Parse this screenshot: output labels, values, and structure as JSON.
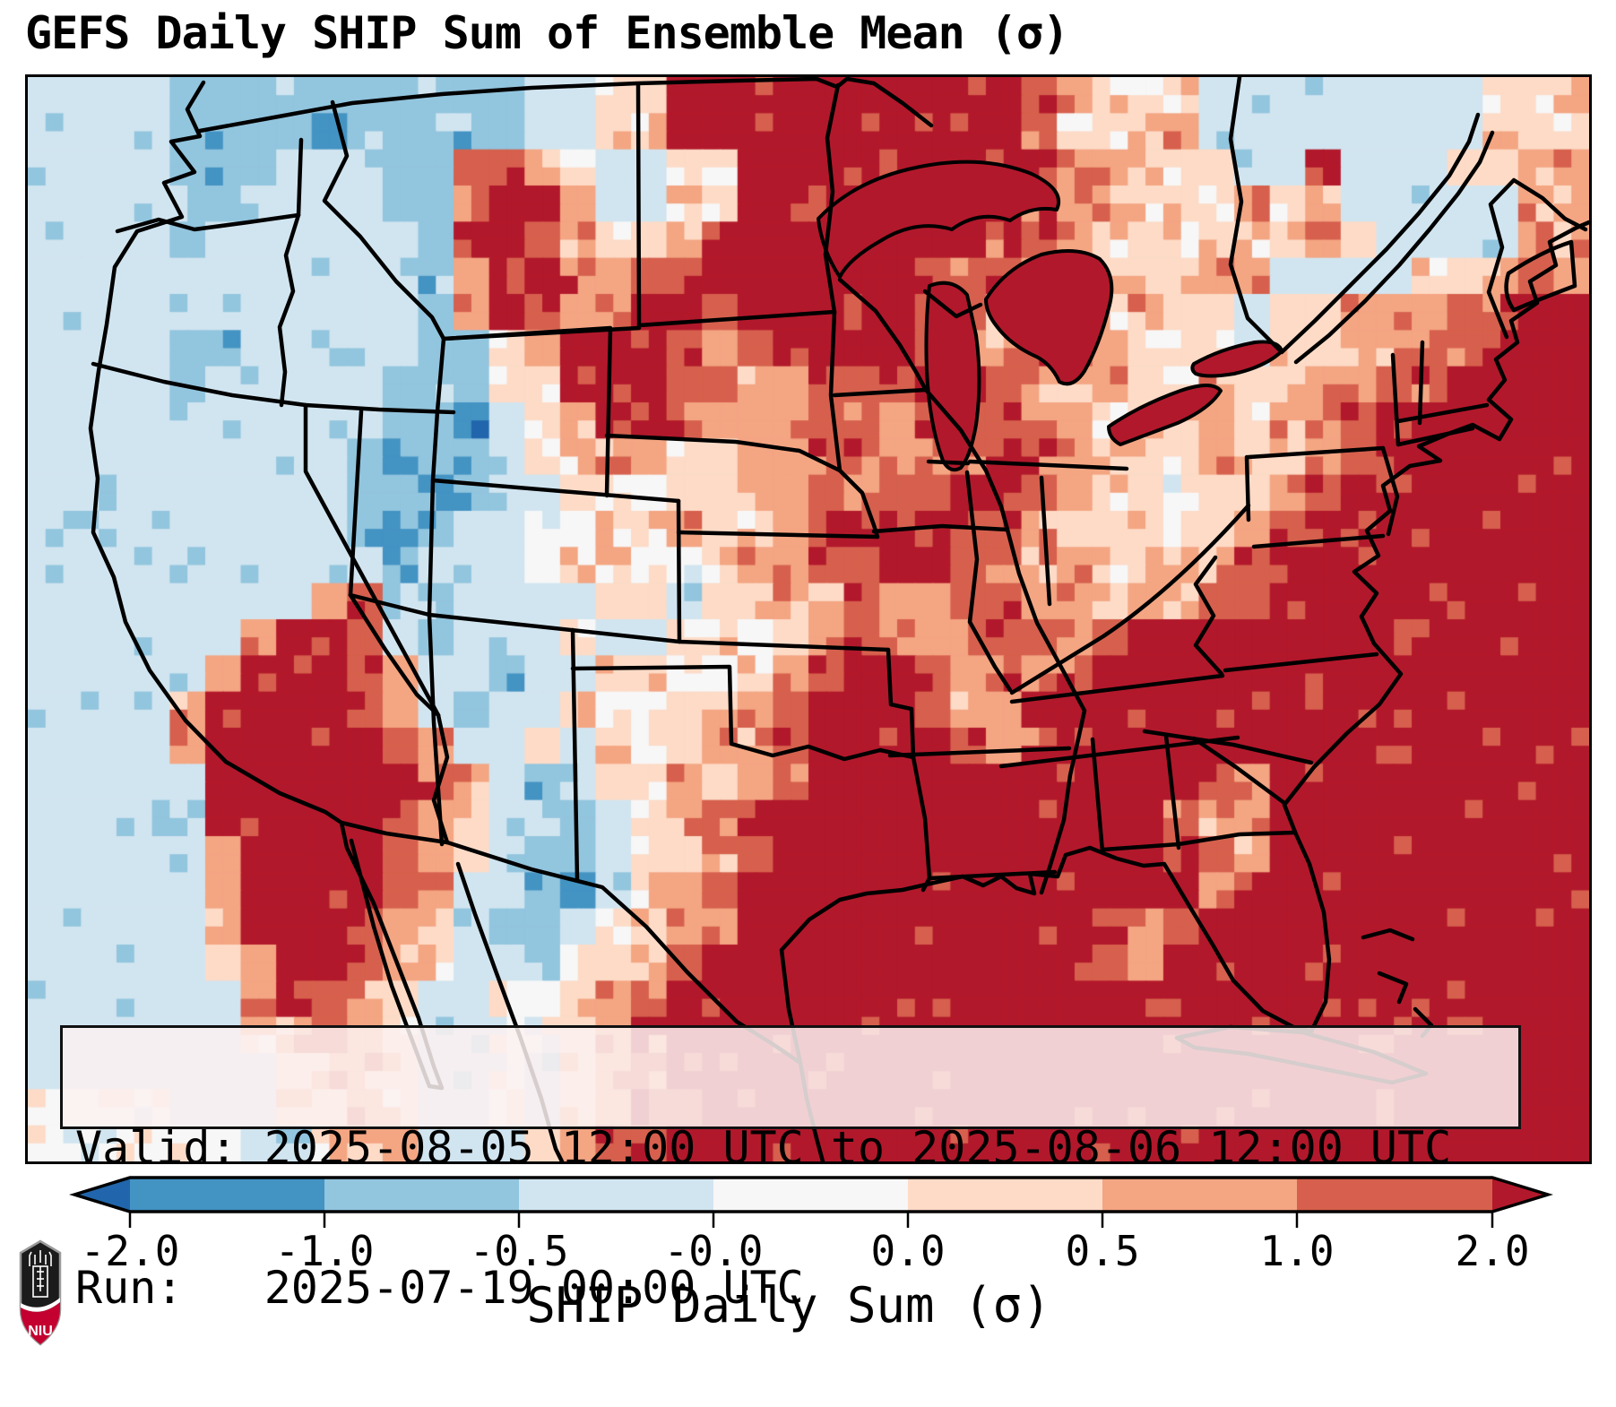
{
  "title": "GEFS Daily SHIP Sum of Ensemble Mean (σ)",
  "info_box": {
    "valid_label": "Valid:",
    "valid_value": "2025-08-05 12:00 UTC to 2025-08-06 12:00 UTC",
    "run_label": "Run:",
    "run_value": "2025-07-19 00:00 UTC"
  },
  "colorbar": {
    "label": "SHIP Daily Sum (σ)",
    "ticks": [
      "-2.0",
      "-1.0",
      "-0.5",
      "-0.0",
      "0.0",
      "0.5",
      "1.0",
      "2.0"
    ],
    "segment_colors": [
      "#4393c3",
      "#92c5de",
      "#d1e5f0",
      "#f7f7f7",
      "#fddbc7",
      "#f4a582",
      "#d6604d"
    ],
    "under_color": "#2166ac",
    "over_color": "#b2182b"
  },
  "logo": {
    "text": "NIU"
  },
  "chart_data": {
    "type": "heatmap",
    "title": "GEFS Daily SHIP Sum of Ensemble Mean (σ)",
    "colorbar_label": "SHIP Daily Sum (σ)",
    "valid": "2025-08-05 12:00 UTC to 2025-08-06 12:00 UTC",
    "run": "2025-07-19 00:00 UTC",
    "levels": [
      -2.0,
      -1.0,
      -0.5,
      -0.0,
      0.0,
      0.5,
      1.0,
      2.0
    ],
    "palette": [
      "#2166ac",
      "#4393c3",
      "#92c5de",
      "#d1e5f0",
      "#f7f7f7",
      "#fddbc7",
      "#f4a582",
      "#d6604d",
      "#b2182b"
    ],
    "bin_meaning": [
      "< -2.0",
      "-2.0 to -1.0",
      "-1.0 to -0.5",
      "-0.5 to -0.0",
      "-0.0 to 0.0",
      "0.0 to 0.5",
      "0.5 to 1.0",
      "1.0 to 2.0",
      "> 2.0"
    ],
    "grid": {
      "cols": 44,
      "rows": 30,
      "rle_rows": [
        "3*4 2*10 3*2 5*2 8*10 7*1 6*1 5*3 3*8 5*2 6*1",
        "3*4 2*4 1*1 2*5 3*2 5*2 8*10 7*1 5*3 6*1 3*8 5*3",
        "3*4 2*3 3*3 2*2 7*2 6*1 5*1 3*2 5*2 8*9 6*2 5*3 3*2 8*1 3*3 5*2 6*2",
        "3*4 2*2 3*4 2*2 7*1 8*2 6*1 3*2 5*2 8*8 7*1 6*2 5*3 6*1 5*2 3*5 6*2",
        "3*4 2*1 3*6 2*1 8*2 7*1 6*1 5*2 6*1 8*8 7*2 6*1 5*6 6*1 5*1 3*4 6*2",
        "3*11 2*1 6*1 8*2 7*1 6*1 7*2 8*6 7*3 6*1 5*4 6*2 3*4 5*2 6*1 7*1 6*1",
        "3*11 2*1 6*1 8*1 7*1 6*2 8*2 7*1 8*5 7*2 6*2 5*2 6*1 5*2 3*1 5*2 6*3 7*2 8*2",
        "3*4 2*2 3*5 2*2 5*1 6*1 8*3 7*1 6*1 7*1 8*4 7*1 6*2 7*1 6*2 5*3 3*1 5*2 6*2 7*2 8*3",
        "3*4 2*1 3*5 2*3 5*2 8*3 7*2 6*2 7*3 8*2 7*1 6*3 5*2 6*1 5*2 6*2 7*2 8*4",
        "3*10 2*2 1*1 3*1 5*1 6*1 8*2 7*1 6*3 7*2 6*1 7*3 6*2 5*3 6*1 5*1 6*1 7*2 8*6",
        "3*9 2*1 1*1 2*2 3*1 5*2 6*2 5*2 6*2 7*2 6*1 7*2 8*1 7*1 6*1 5*3 6*1 5*2 6*1 7*1 8*6",
        "3*9 2*2 1*1 2*1 3*2 5*1 4*2 5*2 6*2 7*1 6*1 7*2 8*2 7*1 6*1 5*2 4*1 5*2 6*1 7*1 8*7",
        "3*9 2*1 1*1 2*1 3*2 4*2 5*2 6*1 5*2 6*1 7*1 8*3 7*2 6*1 5*3 4*1 5*1 6*1 7*1 8*8",
        "3*10 2*1 3*3 4*1 5*2 4*2 5*1 6*2 7*2 8*2 7*2 6*2 5*2 6*2 7*1 8*9",
        "3*8 6*1 7*1 3*1 2*1 3*4 5*2 3*1 5*2 6*2 7*1 6*2 7*2 6*2 5*1 6*2 7*2 8*9",
        "3*6 6*1 8*2 7*1 3*1 2*1 3*3 5*1 3*2 5*2 4*1 5*1 6*1 7*1 6*2 7*3 6*1 7*1 8*13",
        "3*5 6*1 8*3 7*1 6*1 3*2 2*1 3*2 5*2 4*2 5*1 6*1 7*1 8*2 7*1 6*1 7*1 6*1 7*1 8*14",
        "3*4 6*1 8*4 7*1 6*1 3*1 2*1 3*2 5*1 4*2 5*2 6*1 7*1 8*3 7*1 6*2 8*16",
        "3*4 6*1 8*5 7*1 6*1 3*2 5*1 3*1 5*1 4*1 5*1 6*2 7*1 8*4 7*1 6*1 7*1 8*15",
        "3*5 8*6 7*1 6*1 3*1 2*1 3*1 5*2 6*1 5*1 6*1 7*1 8*11 7*1 6*1 8*9",
        "3*5 8*5 7*1 6*1 5*1 3*2 2*1 3*1 5*1 6*1 7*1 8*12 7*1 6*2 8*9",
        "3*5 6*1 8*4 7*1 6*1 5*1 3*1 2*2 3*1 5*2 6*1 7*1 8*12 7*1 6*1 8*9",
        "3*5 6*1 8*4 7*1 6*1 3*2 2*1 1*1 3*1 5*1 6*1 7*1 8*13 6*1 8*10",
        "3*5 6*1 8*3 7*1 6*1 5*1 3*1 2*2 3*1 4*1 5*1 6*1 7*1 8*10 7*1 6*1 7*1 8*11",
        "3*5 5*1 6*1 8*2 7*1 6*1 5*1 3*2 2*1 4*1 5*1 6*1 7*1 8*11 7*1 6*1 8*12",
        "3*6 6*1 8*1 7*1 6*1 5*1 3*2 4*2 5*1 6*1 7*1 8*26",
        "3*6 5*1 6*1 7*1 6*1 5*1 3*2 4*2 5*1 6*1 7*1 8*26",
        "3*7 5*1 6*2 5*1 3*2 4*1 3*1 5*1 6*1 7*1 8*26",
        "4*4 3*3 5*2 6*1 5*1 3*2 4*1 3*1 5*1 6*1 7*2 8*25",
        "4*6 3*2 5*2 6*1 3*3 5*1 6*1 7*2 8*26"
      ]
    }
  }
}
